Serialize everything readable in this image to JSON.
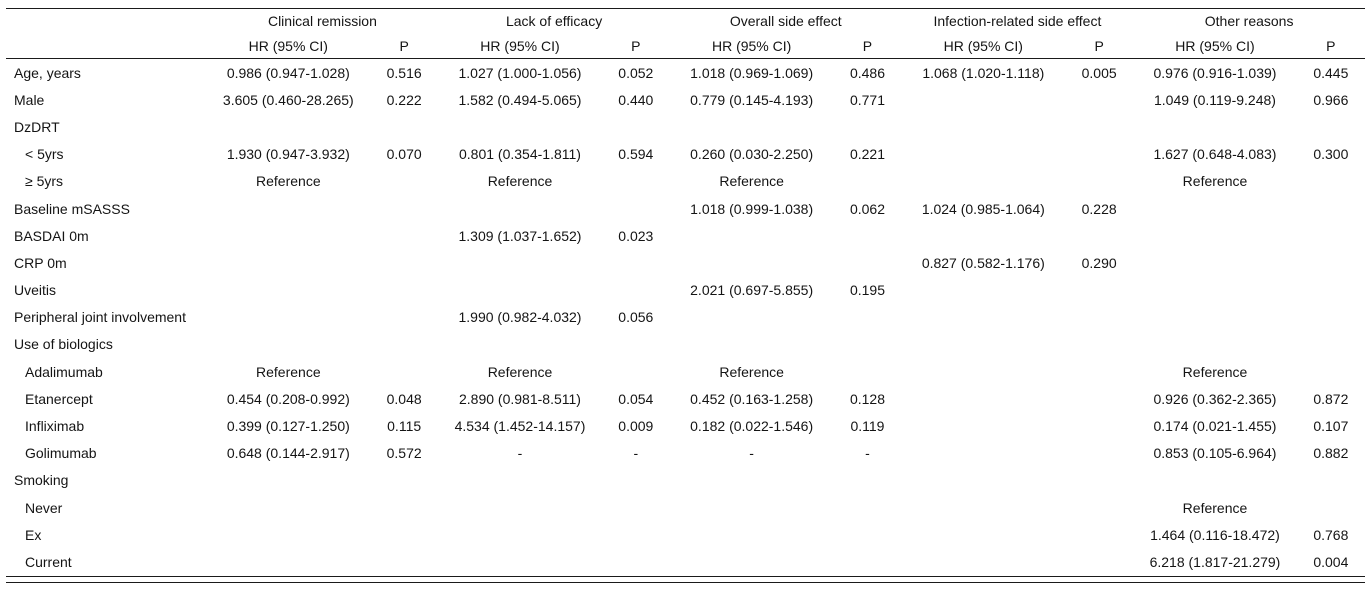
{
  "table": {
    "groups": [
      {
        "label": "Clinical remission"
      },
      {
        "label": "Lack of efficacy"
      },
      {
        "label": "Overall side effect"
      },
      {
        "label": "Infection-related side effect"
      },
      {
        "label": "Other reasons"
      }
    ],
    "subheaders": {
      "hr": "HR (95% CI)",
      "p": "P"
    },
    "rows": [
      {
        "label": "Age, years",
        "indent": 0,
        "cells": [
          "0.986 (0.947-1.028)",
          "0.516",
          "1.027 (1.000-1.056)",
          "0.052",
          "1.018 (0.969-1.069)",
          "0.486",
          "1.068 (1.020-1.118)",
          "0.005",
          "0.976 (0.916-1.039)",
          "0.445"
        ]
      },
      {
        "label": "Male",
        "indent": 0,
        "cells": [
          "3.605 (0.460-28.265)",
          "0.222",
          "1.582 (0.494-5.065)",
          "0.440",
          "0.779 (0.145-4.193)",
          "0.771",
          "",
          "",
          "1.049 (0.119-9.248)",
          "0.966"
        ]
      },
      {
        "label": "DzDRT",
        "indent": 0,
        "cells": [
          "",
          "",
          "",
          "",
          "",
          "",
          "",
          "",
          "",
          ""
        ]
      },
      {
        "label": "< 5yrs",
        "indent": 1,
        "cells": [
          "1.930 (0.947-3.932)",
          "0.070",
          "0.801 (0.354-1.811)",
          "0.594",
          "0.260 (0.030-2.250)",
          "0.221",
          "",
          "",
          "1.627 (0.648-4.083)",
          "0.300"
        ]
      },
      {
        "label": "≥ 5yrs",
        "indent": 1,
        "cells": [
          "Reference",
          "",
          "Reference",
          "",
          "Reference",
          "",
          "",
          "",
          "Reference",
          ""
        ]
      },
      {
        "label": "Baseline mSASSS",
        "indent": 0,
        "cells": [
          "",
          "",
          "",
          "",
          "1.018 (0.999-1.038)",
          "0.062",
          "1.024 (0.985-1.064)",
          "0.228",
          "",
          ""
        ]
      },
      {
        "label": "BASDAI 0m",
        "indent": 0,
        "cells": [
          "",
          "",
          "1.309 (1.037-1.652)",
          "0.023",
          "",
          "",
          "",
          "",
          "",
          ""
        ]
      },
      {
        "label": "CRP 0m",
        "indent": 0,
        "cells": [
          "",
          "",
          "",
          "",
          "",
          "",
          "0.827 (0.582-1.176)",
          "0.290",
          "",
          ""
        ]
      },
      {
        "label": "Uveitis",
        "indent": 0,
        "cells": [
          "",
          "",
          "",
          "",
          "2.021 (0.697-5.855)",
          "0.195",
          "",
          "",
          "",
          ""
        ]
      },
      {
        "label": "Peripheral joint involvement",
        "indent": 0,
        "cells": [
          "",
          "",
          "1.990 (0.982-4.032)",
          "0.056",
          "",
          "",
          "",
          "",
          "",
          ""
        ]
      },
      {
        "label": "Use of biologics",
        "indent": 0,
        "cells": [
          "",
          "",
          "",
          "",
          "",
          "",
          "",
          "",
          "",
          ""
        ]
      },
      {
        "label": "Adalimumab",
        "indent": 1,
        "cells": [
          "Reference",
          "",
          "Reference",
          "",
          "Reference",
          "",
          "",
          "",
          "Reference",
          ""
        ]
      },
      {
        "label": "Etanercept",
        "indent": 1,
        "cells": [
          "0.454 (0.208-0.992)",
          "0.048",
          "2.890 (0.981-8.511)",
          "0.054",
          "0.452 (0.163-1.258)",
          "0.128",
          "",
          "",
          "0.926 (0.362-2.365)",
          "0.872"
        ]
      },
      {
        "label": "Infliximab",
        "indent": 1,
        "cells": [
          "0.399 (0.127-1.250)",
          "0.115",
          "4.534 (1.452-14.157)",
          "0.009",
          "0.182 (0.022-1.546)",
          "0.119",
          "",
          "",
          "0.174 (0.021-1.455)",
          "0.107"
        ]
      },
      {
        "label": "Golimumab",
        "indent": 1,
        "cells": [
          "0.648 (0.144-2.917)",
          "0.572",
          "-",
          "-",
          "-",
          "-",
          "",
          "",
          "0.853 (0.105-6.964)",
          "0.882"
        ]
      },
      {
        "label": "Smoking",
        "indent": 0,
        "cells": [
          "",
          "",
          "",
          "",
          "",
          "",
          "",
          "",
          "",
          ""
        ]
      },
      {
        "label": "Never",
        "indent": 1,
        "cells": [
          "",
          "",
          "",
          "",
          "",
          "",
          "",
          "",
          "Reference",
          ""
        ]
      },
      {
        "label": "Ex",
        "indent": 1,
        "cells": [
          "",
          "",
          "",
          "",
          "",
          "",
          "",
          "",
          "1.464 (0.116-18.472)",
          "0.768"
        ]
      },
      {
        "label": "Current",
        "indent": 1,
        "cells": [
          "",
          "",
          "",
          "",
          "",
          "",
          "",
          "",
          "6.218 (1.817-21.279)",
          "0.004"
        ]
      }
    ]
  }
}
